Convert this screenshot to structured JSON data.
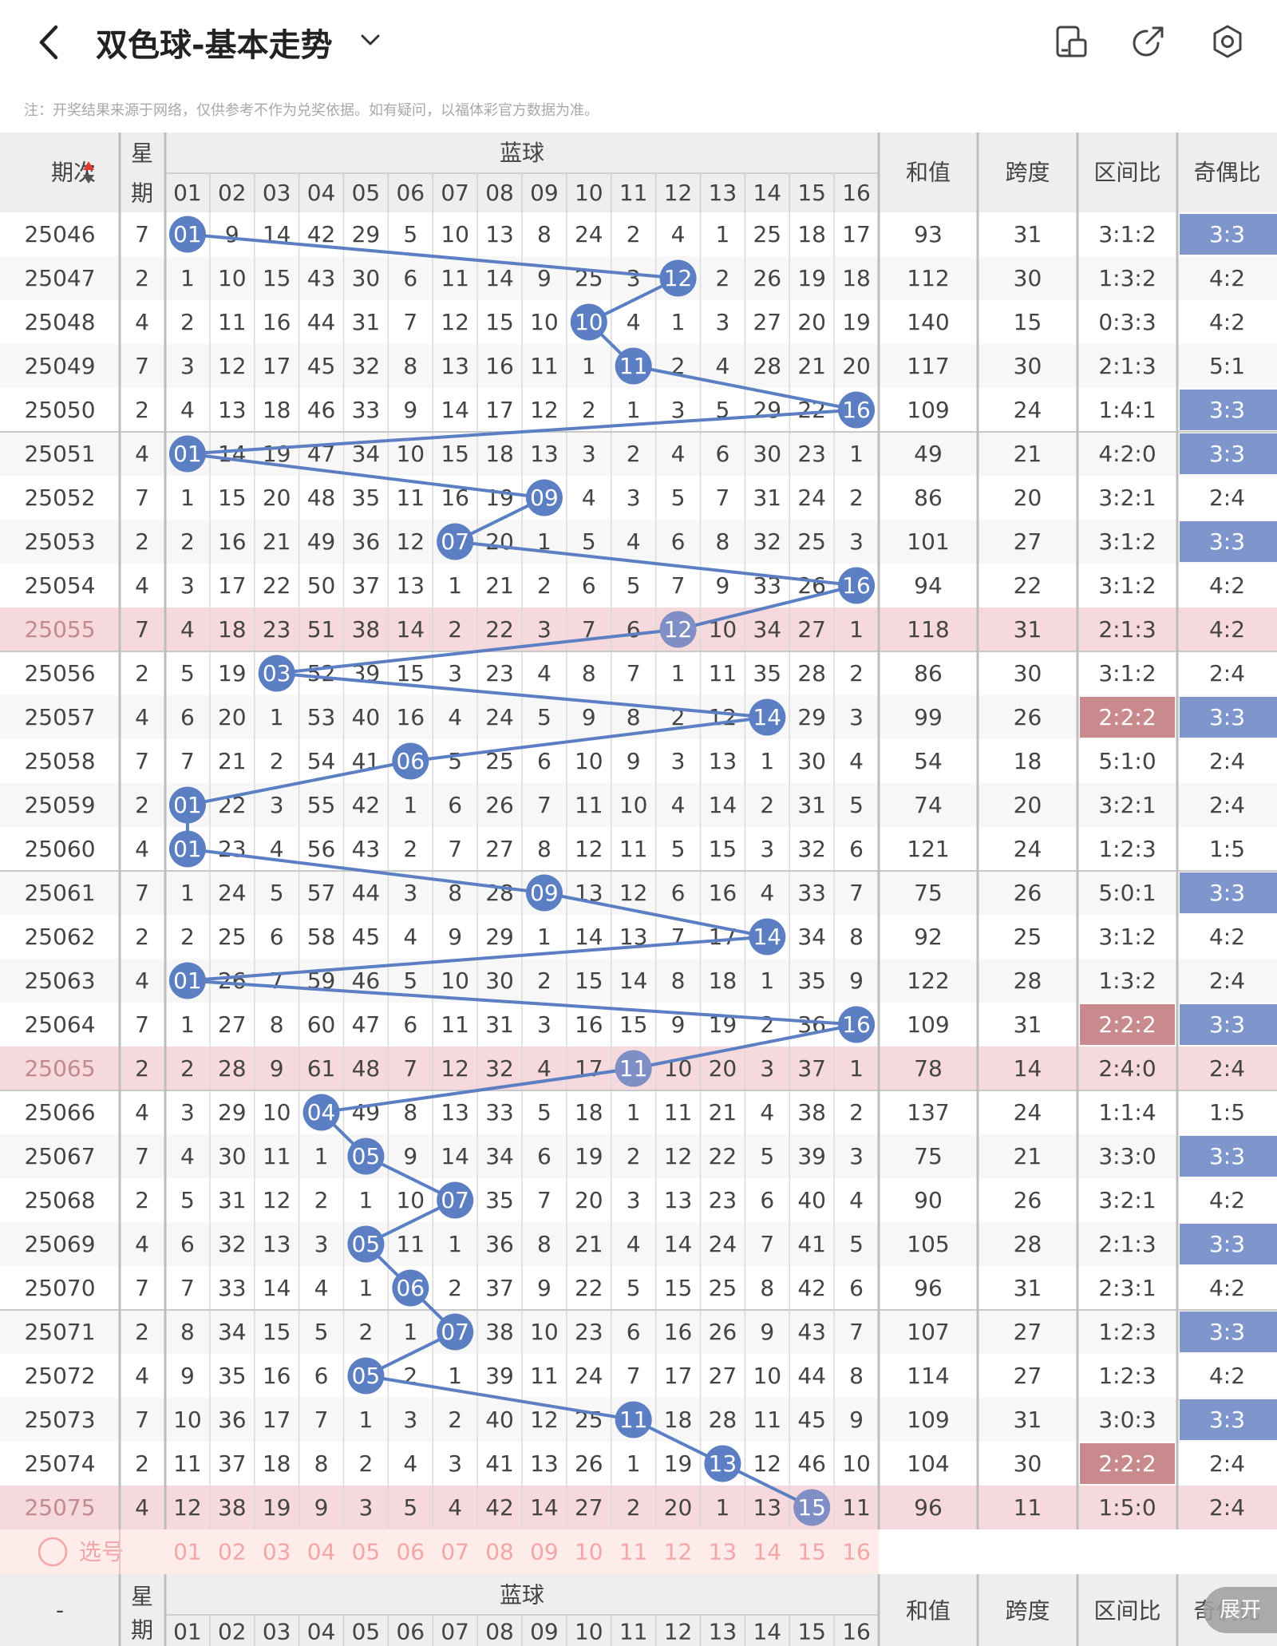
{
  "header": {
    "title": "双色球-基本走势",
    "icons": [
      "chevron-left-icon",
      "chevron-down-icon",
      "layout-icon",
      "share-icon",
      "settings-icon"
    ]
  },
  "notice": "注：开奖结果来源于网络，仅供参考不作为兑奖依据。如有疑问，以福体彩官方数据为准。",
  "table": {
    "col_issue": "期次",
    "col_week": "星期",
    "col_blue_group": "蓝球",
    "col_sum": "和值",
    "col_span": "跨度",
    "col_range": "区间比",
    "col_oddeven": "奇偶比",
    "blue_numbers": [
      "01",
      "02",
      "03",
      "04",
      "05",
      "06",
      "07",
      "08",
      "09",
      "10",
      "11",
      "12",
      "13",
      "14",
      "15",
      "16"
    ],
    "rows": [
      {
        "issue": "25046",
        "week": "7",
        "blue": 1,
        "miss": [
          1,
          9,
          14,
          42,
          29,
          5,
          10,
          13,
          8,
          24,
          2,
          4,
          1,
          25,
          18,
          17
        ],
        "sum": "93",
        "span": "31",
        "range": "3:1:2",
        "oe": "3:3",
        "oe_hl": true,
        "range_hl": false,
        "pink": false
      },
      {
        "issue": "25047",
        "week": "2",
        "blue": 12,
        "miss": [
          1,
          10,
          15,
          43,
          30,
          6,
          11,
          14,
          9,
          25,
          3,
          12,
          2,
          26,
          19,
          18
        ],
        "sum": "112",
        "span": "30",
        "range": "1:3:2",
        "oe": "4:2",
        "oe_hl": false,
        "range_hl": false,
        "pink": false
      },
      {
        "issue": "25048",
        "week": "4",
        "blue": 10,
        "miss": [
          2,
          11,
          16,
          44,
          31,
          7,
          12,
          15,
          10,
          10,
          4,
          1,
          3,
          27,
          20,
          19
        ],
        "sum": "140",
        "span": "15",
        "range": "0:3:3",
        "oe": "4:2",
        "oe_hl": false,
        "range_hl": false,
        "pink": false
      },
      {
        "issue": "25049",
        "week": "7",
        "blue": 11,
        "miss": [
          3,
          12,
          17,
          45,
          32,
          8,
          13,
          16,
          11,
          1,
          11,
          2,
          4,
          28,
          21,
          20
        ],
        "sum": "117",
        "span": "30",
        "range": "2:1:3",
        "oe": "5:1",
        "oe_hl": false,
        "range_hl": false,
        "pink": false
      },
      {
        "issue": "25050",
        "week": "2",
        "blue": 16,
        "miss": [
          4,
          13,
          18,
          46,
          33,
          9,
          14,
          17,
          12,
          2,
          1,
          3,
          5,
          29,
          22,
          16
        ],
        "sum": "109",
        "span": "24",
        "range": "1:4:1",
        "oe": "3:3",
        "oe_hl": true,
        "range_hl": false,
        "pink": false
      },
      {
        "issue": "25051",
        "week": "4",
        "blue": 1,
        "miss": [
          1,
          14,
          19,
          47,
          34,
          10,
          15,
          18,
          13,
          3,
          2,
          4,
          6,
          30,
          23,
          1
        ],
        "sum": "49",
        "span": "21",
        "range": "4:2:0",
        "oe": "3:3",
        "oe_hl": true,
        "range_hl": false,
        "pink": false
      },
      {
        "issue": "25052",
        "week": "7",
        "blue": 9,
        "miss": [
          1,
          15,
          20,
          48,
          35,
          11,
          16,
          19,
          9,
          4,
          3,
          5,
          7,
          31,
          24,
          2
        ],
        "sum": "86",
        "span": "20",
        "range": "3:2:1",
        "oe": "2:4",
        "oe_hl": false,
        "range_hl": false,
        "pink": false
      },
      {
        "issue": "25053",
        "week": "2",
        "blue": 7,
        "miss": [
          2,
          16,
          21,
          49,
          36,
          12,
          7,
          20,
          1,
          5,
          4,
          6,
          8,
          32,
          25,
          3
        ],
        "sum": "101",
        "span": "27",
        "range": "3:1:2",
        "oe": "3:3",
        "oe_hl": true,
        "range_hl": false,
        "pink": false
      },
      {
        "issue": "25054",
        "week": "4",
        "blue": 16,
        "miss": [
          3,
          17,
          22,
          50,
          37,
          13,
          1,
          21,
          2,
          6,
          5,
          7,
          9,
          33,
          26,
          16
        ],
        "sum": "94",
        "span": "22",
        "range": "3:1:2",
        "oe": "4:2",
        "oe_hl": false,
        "range_hl": false,
        "pink": false
      },
      {
        "issue": "25055",
        "week": "7",
        "blue": 12,
        "miss": [
          4,
          18,
          23,
          51,
          38,
          14,
          2,
          22,
          3,
          7,
          6,
          12,
          10,
          34,
          27,
          1
        ],
        "sum": "118",
        "span": "31",
        "range": "2:1:3",
        "oe": "4:2",
        "oe_hl": false,
        "range_hl": false,
        "pink": true
      },
      {
        "issue": "25056",
        "week": "2",
        "blue": 3,
        "miss": [
          5,
          19,
          3,
          52,
          39,
          15,
          3,
          23,
          4,
          8,
          7,
          1,
          11,
          35,
          28,
          2
        ],
        "sum": "86",
        "span": "30",
        "range": "3:1:2",
        "oe": "2:4",
        "oe_hl": false,
        "range_hl": false,
        "pink": false
      },
      {
        "issue": "25057",
        "week": "4",
        "blue": 14,
        "miss": [
          6,
          20,
          1,
          53,
          40,
          16,
          4,
          24,
          5,
          9,
          8,
          2,
          12,
          14,
          29,
          3
        ],
        "sum": "99",
        "span": "26",
        "range": "2:2:2",
        "oe": "3:3",
        "oe_hl": true,
        "range_hl": true,
        "pink": false
      },
      {
        "issue": "25058",
        "week": "7",
        "blue": 6,
        "miss": [
          7,
          21,
          2,
          54,
          41,
          6,
          5,
          25,
          6,
          10,
          9,
          3,
          13,
          1,
          30,
          4
        ],
        "sum": "54",
        "span": "18",
        "range": "5:1:0",
        "oe": "2:4",
        "oe_hl": false,
        "range_hl": false,
        "pink": false
      },
      {
        "issue": "25059",
        "week": "2",
        "blue": 1,
        "miss": [
          1,
          22,
          3,
          55,
          42,
          1,
          6,
          26,
          7,
          11,
          10,
          4,
          14,
          2,
          31,
          5
        ],
        "sum": "74",
        "span": "20",
        "range": "3:2:1",
        "oe": "2:4",
        "oe_hl": false,
        "range_hl": false,
        "pink": false
      },
      {
        "issue": "25060",
        "week": "4",
        "blue": 1,
        "miss": [
          1,
          23,
          4,
          56,
          43,
          2,
          7,
          27,
          8,
          12,
          11,
          5,
          15,
          3,
          32,
          6
        ],
        "sum": "121",
        "span": "24",
        "range": "1:2:3",
        "oe": "1:5",
        "oe_hl": false,
        "range_hl": false,
        "pink": false
      },
      {
        "issue": "25061",
        "week": "7",
        "blue": 9,
        "miss": [
          1,
          24,
          5,
          57,
          44,
          3,
          8,
          28,
          9,
          13,
          12,
          6,
          16,
          4,
          33,
          7
        ],
        "sum": "75",
        "span": "26",
        "range": "5:0:1",
        "oe": "3:3",
        "oe_hl": true,
        "range_hl": false,
        "pink": false
      },
      {
        "issue": "25062",
        "week": "2",
        "blue": 14,
        "miss": [
          2,
          25,
          6,
          58,
          45,
          4,
          9,
          29,
          1,
          14,
          13,
          7,
          17,
          14,
          34,
          8
        ],
        "sum": "92",
        "span": "25",
        "range": "3:1:2",
        "oe": "4:2",
        "oe_hl": false,
        "range_hl": false,
        "pink": false
      },
      {
        "issue": "25063",
        "week": "4",
        "blue": 1,
        "miss": [
          1,
          26,
          7,
          59,
          46,
          5,
          10,
          30,
          2,
          15,
          14,
          8,
          18,
          1,
          35,
          9
        ],
        "sum": "122",
        "span": "28",
        "range": "1:3:2",
        "oe": "2:4",
        "oe_hl": false,
        "range_hl": false,
        "pink": false
      },
      {
        "issue": "25064",
        "week": "7",
        "blue": 16,
        "miss": [
          1,
          27,
          8,
          60,
          47,
          6,
          11,
          31,
          3,
          16,
          15,
          9,
          19,
          2,
          36,
          16
        ],
        "sum": "109",
        "span": "31",
        "range": "2:2:2",
        "oe": "3:3",
        "oe_hl": true,
        "range_hl": true,
        "pink": false
      },
      {
        "issue": "25065",
        "week": "2",
        "blue": 11,
        "miss": [
          2,
          28,
          9,
          61,
          48,
          7,
          12,
          32,
          4,
          17,
          11,
          10,
          20,
          3,
          37,
          1
        ],
        "sum": "78",
        "span": "14",
        "range": "2:4:0",
        "oe": "2:4",
        "oe_hl": false,
        "range_hl": false,
        "pink": true
      },
      {
        "issue": "25066",
        "week": "4",
        "blue": 4,
        "miss": [
          3,
          29,
          10,
          4,
          49,
          8,
          13,
          33,
          5,
          18,
          1,
          11,
          21,
          4,
          38,
          2
        ],
        "sum": "137",
        "span": "24",
        "range": "1:1:4",
        "oe": "1:5",
        "oe_hl": false,
        "range_hl": false,
        "pink": false
      },
      {
        "issue": "25067",
        "week": "7",
        "blue": 5,
        "miss": [
          4,
          30,
          11,
          1,
          5,
          9,
          14,
          34,
          6,
          19,
          2,
          12,
          22,
          5,
          39,
          3
        ],
        "sum": "75",
        "span": "21",
        "range": "3:3:0",
        "oe": "3:3",
        "oe_hl": true,
        "range_hl": false,
        "pink": false
      },
      {
        "issue": "25068",
        "week": "2",
        "blue": 7,
        "miss": [
          5,
          31,
          12,
          2,
          1,
          10,
          7,
          35,
          7,
          20,
          3,
          13,
          23,
          6,
          40,
          4
        ],
        "sum": "90",
        "span": "26",
        "range": "3:2:1",
        "oe": "4:2",
        "oe_hl": false,
        "range_hl": false,
        "pink": false
      },
      {
        "issue": "25069",
        "week": "4",
        "blue": 5,
        "miss": [
          6,
          32,
          13,
          3,
          5,
          11,
          1,
          36,
          8,
          21,
          4,
          14,
          24,
          7,
          41,
          5
        ],
        "sum": "105",
        "span": "28",
        "range": "2:1:3",
        "oe": "3:3",
        "oe_hl": true,
        "range_hl": false,
        "pink": false
      },
      {
        "issue": "25070",
        "week": "7",
        "blue": 6,
        "miss": [
          7,
          33,
          14,
          4,
          1,
          6,
          2,
          37,
          9,
          22,
          5,
          15,
          25,
          8,
          42,
          6
        ],
        "sum": "96",
        "span": "31",
        "range": "2:3:1",
        "oe": "4:2",
        "oe_hl": false,
        "range_hl": false,
        "pink": false
      },
      {
        "issue": "25071",
        "week": "2",
        "blue": 7,
        "miss": [
          8,
          34,
          15,
          5,
          2,
          1,
          7,
          38,
          10,
          23,
          6,
          16,
          26,
          9,
          43,
          7
        ],
        "sum": "107",
        "span": "27",
        "range": "1:2:3",
        "oe": "3:3",
        "oe_hl": true,
        "range_hl": false,
        "pink": false
      },
      {
        "issue": "25072",
        "week": "4",
        "blue": 5,
        "miss": [
          9,
          35,
          16,
          6,
          5,
          2,
          1,
          39,
          11,
          24,
          7,
          17,
          27,
          10,
          44,
          8
        ],
        "sum": "114",
        "span": "27",
        "range": "1:2:3",
        "oe": "4:2",
        "oe_hl": false,
        "range_hl": false,
        "pink": false
      },
      {
        "issue": "25073",
        "week": "7",
        "blue": 11,
        "miss": [
          10,
          36,
          17,
          7,
          1,
          3,
          2,
          40,
          12,
          25,
          11,
          18,
          28,
          11,
          45,
          9
        ],
        "sum": "109",
        "span": "31",
        "range": "3:0:3",
        "oe": "3:3",
        "oe_hl": true,
        "range_hl": false,
        "pink": false
      },
      {
        "issue": "25074",
        "week": "2",
        "blue": 13,
        "miss": [
          11,
          37,
          18,
          8,
          2,
          4,
          3,
          41,
          13,
          26,
          1,
          19,
          13,
          12,
          46,
          10
        ],
        "sum": "104",
        "span": "30",
        "range": "2:2:2",
        "oe": "2:4",
        "oe_hl": false,
        "range_hl": true,
        "pink": false
      },
      {
        "issue": "25075",
        "week": "4",
        "blue": 15,
        "miss": [
          12,
          38,
          19,
          9,
          3,
          5,
          4,
          42,
          14,
          27,
          2,
          20,
          1,
          13,
          15,
          11
        ],
        "sum": "96",
        "span": "11",
        "range": "1:5:0",
        "oe": "2:4",
        "oe_hl": false,
        "range_hl": false,
        "pink": true
      }
    ],
    "select_label": "选号",
    "footer_issue": "-"
  },
  "expand_label": "展开",
  "colors": {
    "blue_ball": "#5b7fc2",
    "line": "#5b7fc2",
    "oe_highlight": "#7f96cd",
    "range_highlight": "#c98a8e",
    "pink_row": "#f6d9dc",
    "header_bg": "#eeeeee",
    "select_row": "#fdecea",
    "select_text": "#f2a6a6"
  }
}
